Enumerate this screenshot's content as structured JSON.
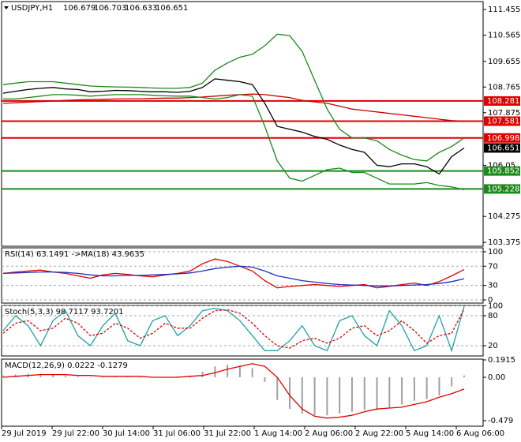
{
  "x_axis_labels": [
    "29 Jul 2019",
    "29 Jul 22:00",
    "30 Jul 14:00",
    "31 Jul 06:00",
    "31 Jul 22:00",
    "1 Aug 14:00",
    "2 Aug 06:00",
    "2 Aug 22:00",
    "5 Aug 14:00",
    "6 Aug 06:00"
  ],
  "chart_data": [
    {
      "type": "line",
      "title": "USDJPY,H1",
      "ohlc": [
        106.679,
        106.703,
        106.633,
        106.651
      ],
      "ylim": [
        103.24,
        111.73
      ],
      "yticks": [
        111.455,
        110.565,
        109.655,
        108.765,
        107.875,
        106.05,
        104.275,
        103.375
      ],
      "grid": false,
      "levels": [
        {
          "value": 108.281,
          "color": "#e00000"
        },
        {
          "value": 107.581,
          "color": "#e00000"
        },
        {
          "value": 106.998,
          "color": "#e00000"
        },
        {
          "value": 105.852,
          "color": "#1a8a1a"
        },
        {
          "value": 105.228,
          "color": "#1a8a1a"
        }
      ],
      "last_price": 106.651,
      "series": [
        {
          "color": "#cc0000",
          "values": [
            108.2,
            108.22,
            108.24,
            108.26,
            108.28,
            108.3,
            108.32,
            108.33,
            108.34,
            108.35,
            108.36,
            108.36,
            108.37,
            108.38,
            108.38,
            108.4,
            108.42,
            108.45,
            108.48,
            108.5,
            108.52,
            108.5,
            108.45,
            108.4,
            108.3,
            108.25,
            108.2,
            108.1,
            108.0,
            107.95,
            107.9,
            107.85,
            107.8,
            107.75,
            107.7,
            107.65,
            107.6,
            107.58
          ]
        },
        {
          "color": "#1a8a1a",
          "values": [
            108.85,
            108.9,
            108.95,
            108.95,
            108.95,
            108.9,
            108.85,
            108.8,
            108.78,
            108.77,
            108.76,
            108.75,
            108.73,
            108.72,
            108.72,
            108.75,
            108.9,
            109.35,
            109.6,
            109.8,
            109.9,
            110.2,
            110.6,
            110.55,
            110.0,
            109.0,
            108.0,
            107.3,
            107.0,
            107.0,
            106.9,
            106.6,
            106.4,
            106.25,
            106.2,
            106.5,
            106.7,
            107.0
          ]
        },
        {
          "color": "#1a8a1a",
          "values": [
            108.35,
            108.35,
            108.4,
            108.45,
            108.5,
            108.5,
            108.48,
            108.45,
            108.48,
            108.5,
            108.5,
            108.5,
            108.48,
            108.46,
            108.45,
            108.45,
            108.4,
            108.35,
            108.4,
            108.5,
            108.45,
            107.4,
            106.2,
            105.6,
            105.5,
            105.7,
            105.9,
            105.95,
            105.8,
            105.8,
            105.6,
            105.4,
            105.4,
            105.4,
            105.45,
            105.35,
            105.3,
            105.2
          ]
        },
        {
          "color": "#000000",
          "values": [
            108.55,
            108.62,
            108.68,
            108.72,
            108.75,
            108.7,
            108.68,
            108.6,
            108.62,
            108.65,
            108.64,
            108.62,
            108.6,
            108.6,
            108.58,
            108.62,
            108.75,
            109.05,
            109.0,
            108.95,
            108.85,
            108.2,
            107.4,
            107.3,
            107.2,
            107.05,
            106.95,
            106.75,
            106.6,
            106.5,
            106.05,
            106.0,
            106.1,
            106.1,
            106.0,
            105.75,
            106.35,
            106.65
          ]
        }
      ]
    },
    {
      "type": "line",
      "title": "RSI(14) 63.1491 ->MA(18) 43.9635",
      "ylim": [
        -6.6,
        108.2
      ],
      "yticks": [
        100,
        70,
        30,
        0
      ],
      "grid": true,
      "series": [
        {
          "color": "#e00000",
          "values": [
            55,
            58,
            60,
            62,
            58,
            55,
            50,
            45,
            52,
            55,
            53,
            50,
            48,
            52,
            55,
            60,
            75,
            85,
            80,
            70,
            60,
            40,
            25,
            28,
            30,
            32,
            30,
            28,
            30,
            32,
            25,
            28,
            32,
            35,
            30,
            38,
            50,
            63
          ]
        },
        {
          "color": "#1f2fbf",
          "values": [
            55,
            56,
            57,
            58,
            58,
            57,
            55,
            52,
            50,
            50,
            51,
            51,
            52,
            53,
            54,
            56,
            60,
            65,
            68,
            70,
            68,
            60,
            50,
            45,
            40,
            37,
            34,
            32,
            31,
            30,
            29,
            29,
            30,
            31,
            32,
            34,
            38,
            44
          ]
        }
      ]
    },
    {
      "type": "line",
      "title": "Stoch(5,3,3) 98.7117 93.7201",
      "ylim": [
        -0.5,
        100.5
      ],
      "yticks": [
        100,
        80,
        20
      ],
      "grid": true,
      "series": [
        {
          "color": "#20a0a8",
          "values": [
            50,
            80,
            60,
            20,
            70,
            90,
            40,
            20,
            60,
            85,
            30,
            20,
            70,
            80,
            40,
            60,
            90,
            95,
            90,
            70,
            40,
            10,
            10,
            30,
            60,
            20,
            10,
            70,
            80,
            40,
            20,
            90,
            60,
            10,
            20,
            80,
            10,
            98.7
          ]
        },
        {
          "color": "#e00000",
          "dashed": true,
          "values": [
            45,
            65,
            70,
            50,
            55,
            75,
            65,
            40,
            45,
            65,
            55,
            35,
            45,
            65,
            55,
            55,
            75,
            90,
            92,
            85,
            65,
            40,
            20,
            15,
            30,
            35,
            25,
            35,
            55,
            60,
            40,
            50,
            70,
            50,
            25,
            40,
            45,
            93.7
          ]
        }
      ]
    },
    {
      "type": "bar",
      "title": "MACD(12,26,9) 0.0222 -0.1279",
      "ylim": [
        -0.54,
        0.2003
      ],
      "yticks": [
        0.1915,
        {
          "value": 0,
          "label": "0.00"
        },
        -0.479
      ],
      "grid": false,
      "color": "#a0a0a0",
      "values": [
        0.02,
        0.03,
        0.04,
        0.04,
        0.03,
        0.02,
        0.01,
        0.0,
        0.0,
        0.01,
        0.01,
        0.0,
        0.0,
        0.0,
        0.01,
        0.02,
        0.06,
        0.12,
        0.14,
        0.13,
        0.1,
        -0.05,
        -0.25,
        -0.35,
        -0.4,
        -0.42,
        -0.42,
        -0.4,
        -0.38,
        -0.36,
        -0.36,
        -0.34,
        -0.3,
        -0.26,
        -0.24,
        -0.2,
        -0.1,
        0.02
      ],
      "series": [
        {
          "color": "#e00000",
          "values": [
            0.0,
            0.01,
            0.02,
            0.03,
            0.03,
            0.03,
            0.02,
            0.02,
            0.01,
            0.01,
            0.01,
            0.01,
            0.0,
            0.0,
            0.0,
            0.01,
            0.02,
            0.05,
            0.09,
            0.12,
            0.15,
            0.12,
            0.0,
            -0.2,
            -0.35,
            -0.43,
            -0.45,
            -0.44,
            -0.42,
            -0.38,
            -0.35,
            -0.34,
            -0.33,
            -0.3,
            -0.27,
            -0.22,
            -0.18,
            -0.13
          ]
        }
      ]
    }
  ]
}
